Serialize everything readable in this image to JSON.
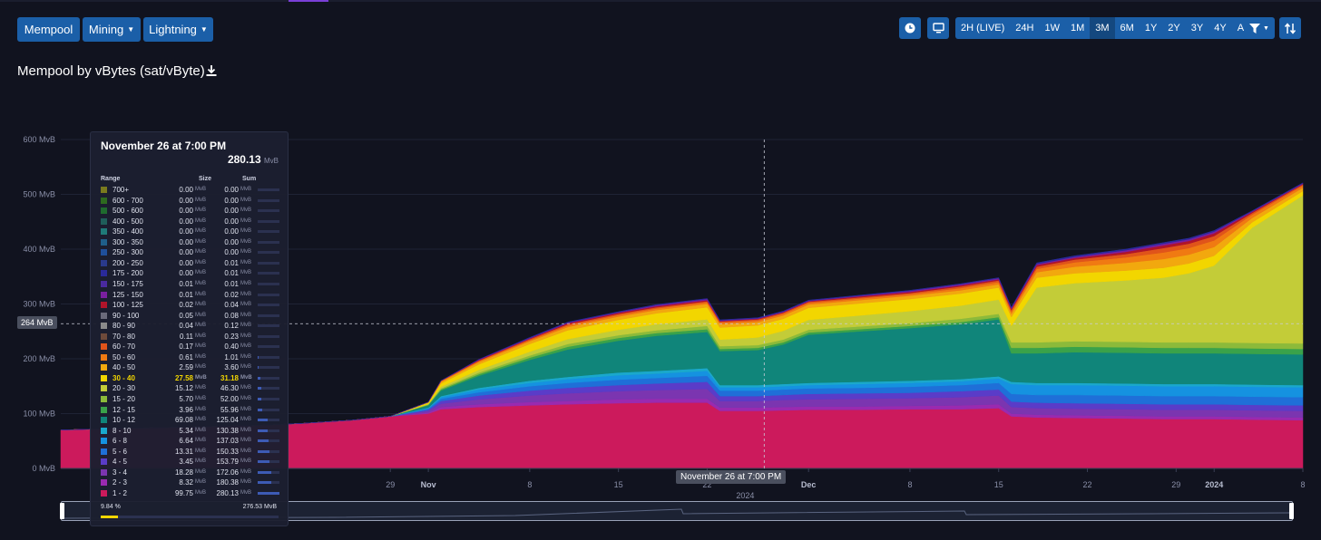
{
  "nav": {
    "mempool": "Mempool",
    "mining": "Mining",
    "lightning": "Lightning"
  },
  "toolbar": {
    "ranges": [
      "2H (LIVE)",
      "24H",
      "1W",
      "1M",
      "3M",
      "6M",
      "1Y",
      "2Y",
      "3Y",
      "4Y",
      "All"
    ],
    "active_range": "3M",
    "icons": [
      "clock-icon",
      "monitor-icon",
      "filter-icon",
      "sort-icon"
    ]
  },
  "title": "Mempool by vBytes (sat/vByte)",
  "crosshair": {
    "x_label": "November 26 at 7:00 PM",
    "y_label": "264 MvB"
  },
  "tooltip": {
    "title": "November 26 at 7:00 PM",
    "total": "280.13",
    "unit": "MvB",
    "headers": {
      "range": "Range",
      "size": "Size",
      "sum": "Sum"
    },
    "footer_pct": "9.84 %",
    "footer_pct_value": 9.84,
    "footer_total": "276.53 MvB",
    "highlighted": "30 - 40",
    "rows": [
      {
        "range": "700+",
        "size": "0.00",
        "sum": "0.00",
        "color": "#7a7a1e"
      },
      {
        "range": "600 - 700",
        "size": "0.00",
        "sum": "0.00",
        "color": "#2e6b1f"
      },
      {
        "range": "500 - 600",
        "size": "0.00",
        "sum": "0.00",
        "color": "#1f6b2e"
      },
      {
        "range": "400 - 500",
        "size": "0.00",
        "sum": "0.00",
        "color": "#1f5e5a"
      },
      {
        "range": "350 - 400",
        "size": "0.00",
        "sum": "0.00",
        "color": "#1f7a78"
      },
      {
        "range": "300 - 350",
        "size": "0.00",
        "sum": "0.00",
        "color": "#1f5f8a"
      },
      {
        "range": "250 - 300",
        "size": "0.00",
        "sum": "0.00",
        "color": "#1f4f9a"
      },
      {
        "range": "200 - 250",
        "size": "0.00",
        "sum": "0.01",
        "color": "#2a3a8c"
      },
      {
        "range": "175 - 200",
        "size": "0.00",
        "sum": "0.01",
        "color": "#2a2a9a"
      },
      {
        "range": "150 - 175",
        "size": "0.01",
        "sum": "0.01",
        "color": "#4a2aa0"
      },
      {
        "range": "125 - 150",
        "size": "0.01",
        "sum": "0.02",
        "color": "#7a1fa0"
      },
      {
        "range": "100 - 125",
        "size": "0.02",
        "sum": "0.04",
        "color": "#b0142a"
      },
      {
        "range": "90 - 100",
        "size": "0.05",
        "sum": "0.08",
        "color": "#6a6a7a"
      },
      {
        "range": "80 - 90",
        "size": "0.04",
        "sum": "0.12",
        "color": "#8a8a8a"
      },
      {
        "range": "70 - 80",
        "size": "0.11",
        "sum": "0.23",
        "color": "#6e4a3a"
      },
      {
        "range": "60 - 70",
        "size": "0.17",
        "sum": "0.40",
        "color": "#e0541a"
      },
      {
        "range": "50 - 60",
        "size": "0.61",
        "sum": "1.01",
        "color": "#f07a12"
      },
      {
        "range": "40 - 50",
        "size": "2.59",
        "sum": "3.60",
        "color": "#f2a80e"
      },
      {
        "range": "30 - 40",
        "size": "27.58",
        "sum": "31.18",
        "color": "#f2d600"
      },
      {
        "range": "20 - 30",
        "size": "15.12",
        "sum": "46.30",
        "color": "#c3cc38"
      },
      {
        "range": "15 - 20",
        "size": "5.70",
        "sum": "52.00",
        "color": "#8cba3a"
      },
      {
        "range": "12 - 15",
        "size": "3.96",
        "sum": "55.96",
        "color": "#3aa24a"
      },
      {
        "range": "10 - 12",
        "size": "69.08",
        "sum": "125.04",
        "color": "#10857a"
      },
      {
        "range": "8 - 10",
        "size": "5.34",
        "sum": "130.38",
        "color": "#1aa8cc"
      },
      {
        "range": "6 - 8",
        "size": "6.64",
        "sum": "137.03",
        "color": "#1592e0"
      },
      {
        "range": "5 - 6",
        "size": "13.31",
        "sum": "150.33",
        "color": "#1f6fd8"
      },
      {
        "range": "4 - 5",
        "size": "3.45",
        "sum": "153.79",
        "color": "#5a3cc8"
      },
      {
        "range": "3 - 4",
        "size": "18.28",
        "sum": "172.06",
        "color": "#7b35b0"
      },
      {
        "range": "2 - 3",
        "size": "8.32",
        "sum": "180.38",
        "color": "#9a2ab0"
      },
      {
        "range": "1 - 2",
        "size": "99.75",
        "sum": "280.13",
        "color": "#cc1a5c"
      }
    ]
  },
  "chart_data": {
    "type": "area",
    "stacked": true,
    "title": "Mempool by vBytes (sat/vByte)",
    "ylabel": "",
    "ylim": [
      0,
      600
    ],
    "y_ticks": [
      "0 MvB",
      "100 MvB",
      "200 MvB",
      "300 MvB",
      "400 MvB",
      "500 MvB",
      "600 MvB"
    ],
    "x_ticks": [
      {
        "label": "29",
        "x": 29,
        "bold": false
      },
      {
        "label": "Nov",
        "x": 32,
        "bold": true
      },
      {
        "label": "8",
        "x": 40,
        "bold": false
      },
      {
        "label": "15",
        "x": 47,
        "bold": false
      },
      {
        "label": "22",
        "x": 54,
        "bold": false
      },
      {
        "label": "Dec",
        "x": 62,
        "bold": true
      },
      {
        "label": "8",
        "x": 70,
        "bold": false
      },
      {
        "label": "15",
        "x": 77,
        "bold": false
      },
      {
        "label": "22",
        "x": 84,
        "bold": false
      },
      {
        "label": "29",
        "x": 91,
        "bold": false
      },
      {
        "label": "2024",
        "x": 94,
        "bold": true
      },
      {
        "label": "8",
        "x": 101,
        "bold": false
      }
    ],
    "x_year_label": "2024",
    "x_range": [
      3,
      101
    ],
    "grid": true,
    "series_colors": [
      "#cc1a5c",
      "#9a2ab0",
      "#7b35b0",
      "#5a3cc8",
      "#1f6fd8",
      "#1592e0",
      "#1aa8cc",
      "#10857a",
      "#3aa24a",
      "#8cba3a",
      "#c3cc38",
      "#f2d600",
      "#f2a80e",
      "#f07a12",
      "#e0541a",
      "#b0142a",
      "#7a1fa0",
      "#2a2a9a"
    ],
    "series_names": [
      "1 - 2",
      "2 - 3",
      "3 - 4",
      "4 - 5",
      "5 - 6",
      "6 - 8",
      "8 - 10",
      "10 - 12",
      "12 - 15",
      "15 - 20",
      "20 - 30",
      "30 - 40",
      "40 - 50",
      "50 - 60",
      "60 - 70",
      "100 - 125",
      "125 - 150",
      "175 - 200"
    ],
    "x": [
      3,
      6,
      10,
      14,
      18,
      22,
      26,
      29,
      32,
      33,
      36,
      40,
      43,
      47,
      50,
      54,
      55,
      58,
      60,
      62,
      66,
      70,
      74,
      77,
      78,
      80,
      83,
      87,
      90,
      92,
      94,
      97,
      101
    ],
    "layers": [
      [
        70,
        72,
        74,
        76,
        78,
        82,
        88,
        95,
        100,
        108,
        112,
        115,
        117,
        119,
        120,
        120,
        105,
        105,
        106,
        107,
        107,
        108,
        108,
        110,
        95,
        93,
        92,
        91,
        90,
        90,
        90,
        89,
        88
      ],
      [
        0,
        0,
        0,
        0,
        0,
        0,
        0,
        0,
        2,
        4,
        5,
        6,
        6,
        7,
        7,
        7,
        6,
        6,
        6,
        6,
        6,
        6,
        7,
        7,
        5,
        5,
        5,
        5,
        5,
        5,
        5,
        5,
        5
      ],
      [
        0,
        0,
        0,
        0,
        0,
        0,
        0,
        0,
        3,
        6,
        9,
        12,
        14,
        15,
        16,
        18,
        12,
        12,
        13,
        13,
        14,
        14,
        15,
        16,
        12,
        12,
        12,
        12,
        12,
        12,
        12,
        12,
        12
      ],
      [
        0,
        0,
        0,
        0,
        0,
        0,
        0,
        0,
        2,
        5,
        7,
        9,
        10,
        11,
        12,
        13,
        9,
        9,
        9,
        10,
        10,
        10,
        11,
        11,
        10,
        10,
        10,
        10,
        10,
        10,
        10,
        10,
        10
      ],
      [
        0,
        0,
        0,
        0,
        0,
        0,
        0,
        0,
        2,
        4,
        6,
        8,
        9,
        10,
        10,
        11,
        10,
        10,
        10,
        10,
        10,
        11,
        11,
        12,
        14,
        14,
        15,
        15,
        15,
        15,
        15,
        15,
        15
      ],
      [
        0,
        0,
        0,
        0,
        0,
        0,
        0,
        0,
        1,
        3,
        5,
        6,
        7,
        8,
        8,
        9,
        6,
        6,
        6,
        6,
        7,
        7,
        7,
        8,
        18,
        18,
        18,
        18,
        18,
        18,
        18,
        18,
        18
      ],
      [
        0,
        0,
        0,
        0,
        0,
        0,
        0,
        0,
        1,
        2,
        3,
        4,
        4,
        5,
        5,
        5,
        4,
        4,
        4,
        4,
        4,
        4,
        4,
        4,
        4,
        4,
        4,
        4,
        4,
        4,
        4,
        4,
        4
      ],
      [
        0,
        0,
        0,
        0,
        0,
        0,
        0,
        0,
        4,
        10,
        22,
        38,
        50,
        58,
        64,
        66,
        62,
        64,
        72,
        88,
        92,
        96,
        100,
        104,
        52,
        54,
        56,
        56,
        56,
        56,
        56,
        56,
        56
      ],
      [
        0,
        0,
        0,
        0,
        0,
        0,
        0,
        0,
        1,
        2,
        3,
        4,
        5,
        5,
        5,
        5,
        4,
        4,
        4,
        4,
        4,
        4,
        4,
        4,
        10,
        10,
        10,
        10,
        10,
        10,
        10,
        10,
        10
      ],
      [
        0,
        0,
        0,
        0,
        0,
        0,
        0,
        0,
        1,
        2,
        3,
        4,
        5,
        5,
        5,
        6,
        5,
        5,
        5,
        5,
        5,
        5,
        6,
        6,
        10,
        10,
        10,
        10,
        10,
        10,
        10,
        10,
        10
      ],
      [
        0,
        0,
        0,
        0,
        0,
        0,
        0,
        0,
        1,
        3,
        5,
        7,
        9,
        10,
        11,
        12,
        12,
        14,
        16,
        18,
        20,
        22,
        24,
        26,
        30,
        100,
        106,
        112,
        118,
        126,
        140,
        210,
        270
      ],
      [
        0,
        0,
        0,
        0,
        0,
        0,
        0,
        0,
        2,
        6,
        10,
        14,
        16,
        18,
        20,
        22,
        22,
        22,
        22,
        22,
        22,
        22,
        22,
        22,
        16,
        18,
        18,
        18,
        18,
        18,
        18,
        10,
        8
      ],
      [
        0,
        0,
        0,
        0,
        0,
        0,
        0,
        0,
        1,
        3,
        4,
        5,
        6,
        6,
        6,
        6,
        6,
        6,
        6,
        6,
        6,
        6,
        6,
        6,
        6,
        10,
        12,
        14,
        16,
        16,
        16,
        8,
        6
      ],
      [
        0,
        0,
        0,
        0,
        0,
        0,
        0,
        0,
        0,
        1,
        2,
        2,
        3,
        3,
        3,
        3,
        3,
        3,
        3,
        3,
        3,
        3,
        4,
        4,
        4,
        6,
        8,
        10,
        12,
        12,
        12,
        6,
        4
      ],
      [
        0,
        0,
        0,
        0,
        0,
        0,
        0,
        0,
        0,
        1,
        1,
        2,
        2,
        2,
        2,
        2,
        2,
        2,
        2,
        2,
        2,
        2,
        3,
        3,
        3,
        4,
        5,
        6,
        8,
        8,
        8,
        3,
        2
      ],
      [
        0,
        0,
        0,
        0,
        0,
        0,
        0,
        0,
        0,
        0,
        1,
        1,
        2,
        2,
        2,
        2,
        1,
        1,
        1,
        1,
        2,
        2,
        2,
        2,
        2,
        3,
        3,
        4,
        5,
        5,
        5,
        2,
        1
      ],
      [
        0,
        0,
        0,
        0,
        0,
        0,
        0,
        0,
        0,
        0,
        1,
        1,
        1,
        1,
        2,
        2,
        1,
        1,
        1,
        1,
        1,
        2,
        2,
        2,
        2,
        2,
        2,
        3,
        3,
        3,
        3,
        1,
        1
      ],
      [
        0,
        0,
        0,
        0,
        0,
        0,
        0,
        0,
        0,
        0,
        0,
        1,
        1,
        1,
        1,
        1,
        1,
        1,
        1,
        1,
        1,
        1,
        1,
        1,
        1,
        2,
        2,
        2,
        2,
        2,
        2,
        1,
        1
      ]
    ],
    "crosshair_x": 58.5,
    "crosshair_y": 264
  }
}
